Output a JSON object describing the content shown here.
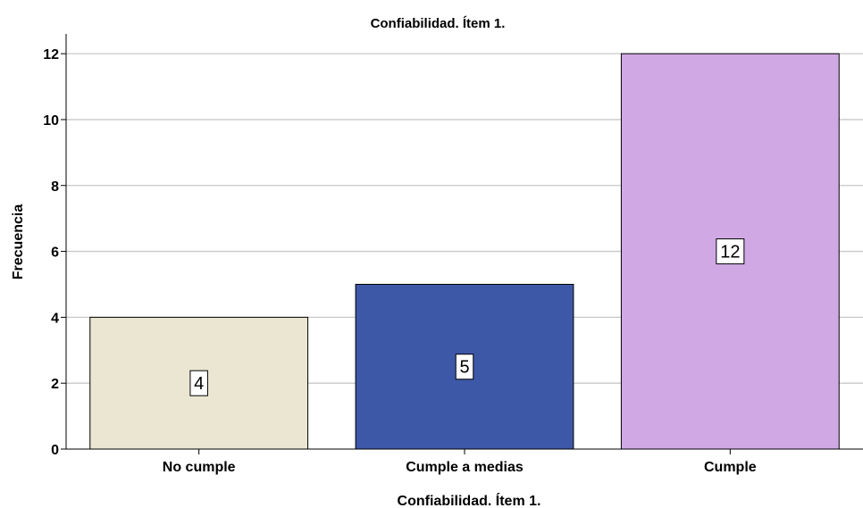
{
  "chart_data": {
    "type": "bar",
    "title": "Confiabilidad. Ítem 1.",
    "xlabel": "Confiabilidad. Ítem 1.",
    "ylabel": "Frecuencia",
    "categories": [
      "No cumple",
      "Cumple a medias",
      "Cumple"
    ],
    "values": [
      4,
      5,
      12
    ],
    "data_labels": [
      "4",
      "5",
      "12"
    ],
    "colors": [
      "#ebe6d2",
      "#3e58a8",
      "#d0a9e4"
    ],
    "ylim": [
      0,
      12.6
    ],
    "yticks": [
      0,
      2,
      4,
      6,
      8,
      10,
      12
    ],
    "grid": true,
    "legend": "none"
  }
}
